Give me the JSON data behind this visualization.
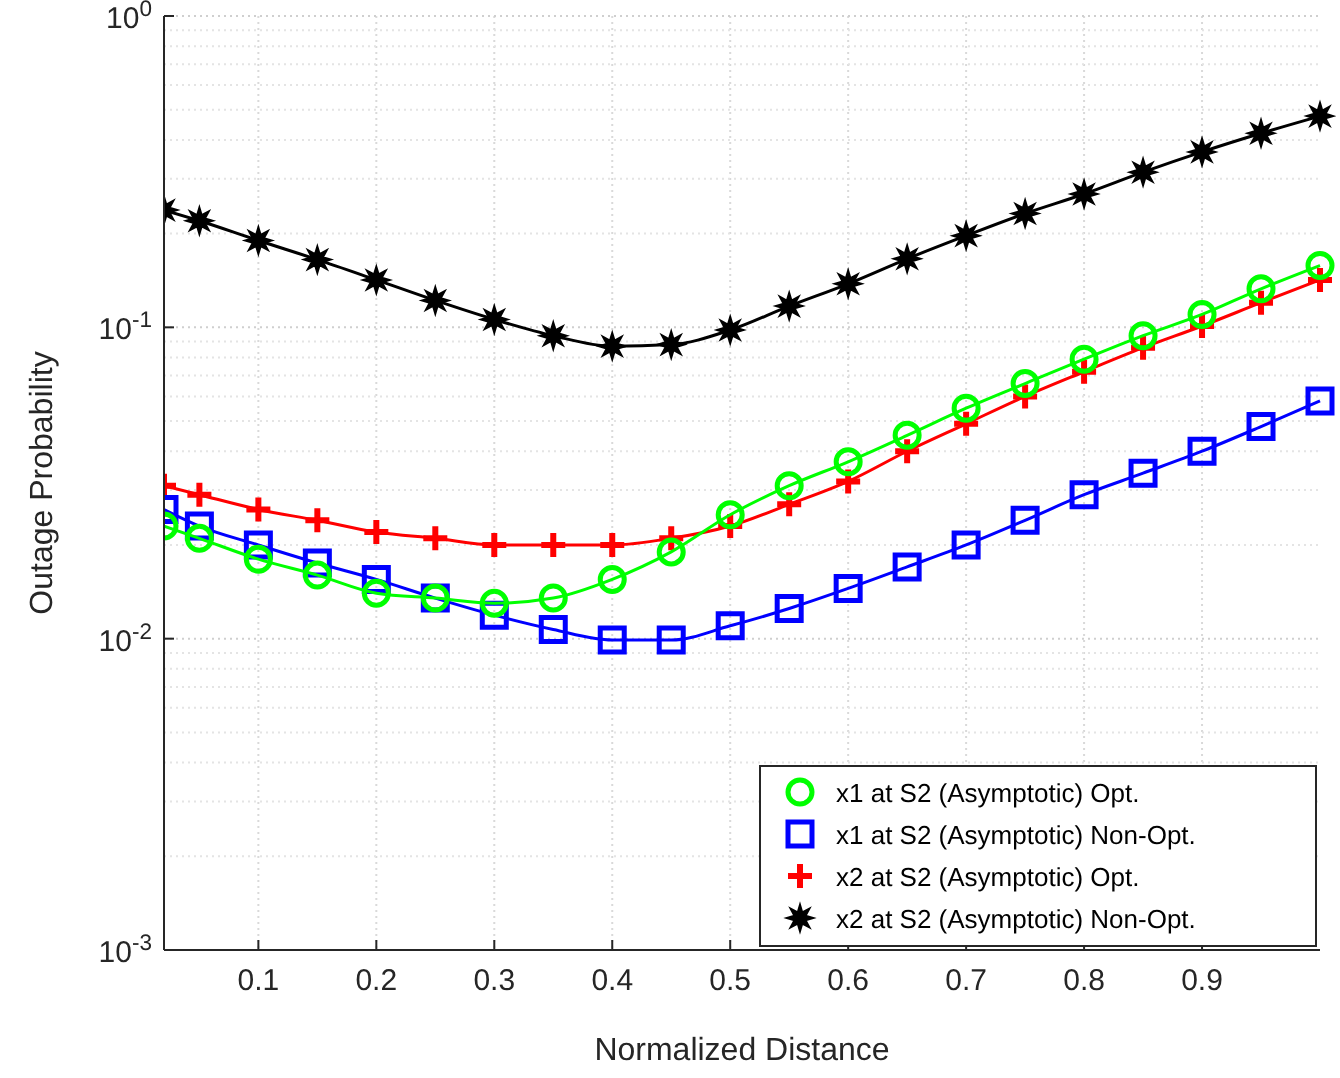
{
  "chart_data": {
    "type": "line",
    "xlabel": "Normalized Distance",
    "ylabel": "Outage Probability",
    "log": "y",
    "grid": true,
    "legend": "bottom right",
    "xlim": [
      0.02,
      1
    ],
    "xticks": [
      0.1,
      0.2,
      0.3,
      0.4,
      0.5,
      0.6,
      0.7,
      0.8,
      0.9
    ],
    "ylim": [
      0.001,
      1
    ],
    "yticks": [
      {
        "value": 0.001,
        "label": "10$^{-3}$"
      },
      {
        "value": 0.01,
        "label": "10$^{-2}$"
      },
      {
        "value": 0.1,
        "label": "10$^{-1}$"
      },
      {
        "value": 1,
        "label": "10$^{0}$"
      }
    ],
    "x": [
      0.02,
      0.05,
      0.1,
      0.15,
      0.2,
      0.25,
      0.3,
      0.35,
      0.4,
      0.45,
      0.5,
      0.55,
      0.6,
      0.65,
      0.7,
      0.75,
      0.8,
      0.85,
      0.9,
      0.95,
      1.0
    ],
    "series": [
      {
        "name": "x1 at S2 (Asymptotic) Opt.",
        "color": "#00ff00",
        "marker": "circle",
        "values": [
          0.023,
          0.021,
          0.018,
          0.016,
          0.014,
          0.0135,
          0.013,
          0.0135,
          0.0155,
          0.019,
          0.025,
          0.031,
          0.037,
          0.045,
          0.055,
          0.066,
          0.079,
          0.094,
          0.11,
          0.133,
          0.158
        ]
      },
      {
        "name": "x1 at S2 (Asymptotic) Non-Opt.",
        "color": "#0000ff",
        "marker": "square",
        "values": [
          0.026,
          0.023,
          0.02,
          0.0175,
          0.0155,
          0.0135,
          0.0119,
          0.0107,
          0.0099,
          0.0099,
          0.011,
          0.0125,
          0.0145,
          0.017,
          0.02,
          0.024,
          0.029,
          0.034,
          0.04,
          0.048,
          0.058
        ]
      },
      {
        "name": "x2 at S2 (Asymptotic) Opt.",
        "color": "#ff0000",
        "marker": "cross",
        "values": [
          0.031,
          0.029,
          0.026,
          0.024,
          0.022,
          0.021,
          0.02,
          0.02,
          0.02,
          0.021,
          0.023,
          0.027,
          0.032,
          0.04,
          0.049,
          0.06,
          0.072,
          0.086,
          0.101,
          0.12,
          0.142
        ]
      },
      {
        "name": "x2 at S2 (Asymptotic) Non-Opt.",
        "color": "#000000",
        "marker": "star",
        "values": [
          0.238,
          0.22,
          0.19,
          0.165,
          0.142,
          0.122,
          0.106,
          0.094,
          0.087,
          0.088,
          0.098,
          0.117,
          0.138,
          0.166,
          0.197,
          0.232,
          0.268,
          0.315,
          0.366,
          0.42,
          0.477
        ]
      }
    ]
  }
}
